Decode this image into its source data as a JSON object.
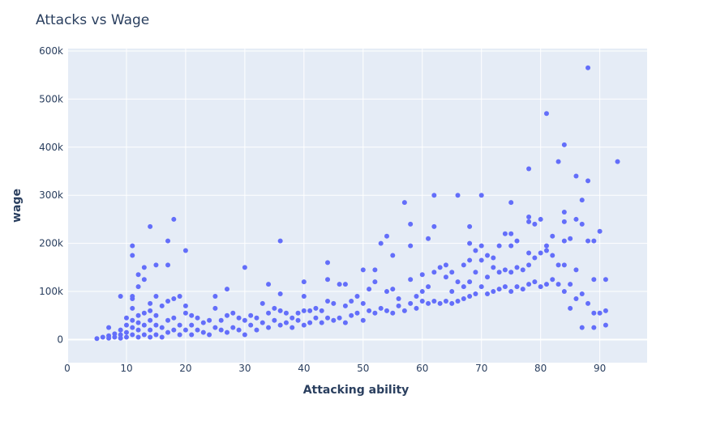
{
  "chart_data": {
    "type": "scatter",
    "title": "Attacks vs Wage",
    "xlabel": "Attacking ability",
    "ylabel": "wage",
    "xlim": [
      0,
      98
    ],
    "ylim": [
      -48000,
      605000
    ],
    "x_ticks": [
      0,
      10,
      20,
      30,
      40,
      50,
      60,
      70,
      80,
      90
    ],
    "x_tick_labels": [
      "0",
      "10",
      "20",
      "30",
      "40",
      "50",
      "60",
      "70",
      "80",
      "90"
    ],
    "y_ticks": [
      0,
      100000,
      200000,
      300000,
      400000,
      500000,
      600000
    ],
    "y_tick_labels": [
      "0",
      "100k",
      "200k",
      "300k",
      "400k",
      "500k",
      "600k"
    ],
    "grid": true,
    "legend": false,
    "colors": {
      "marker": "#636efa",
      "plot_bg": "#e5ecf6",
      "grid": "#ffffff",
      "text": "#2a3f5f"
    },
    "series": [
      {
        "points": [
          [
            5,
            2000
          ],
          [
            6,
            5000
          ],
          [
            7,
            3000
          ],
          [
            7,
            8000
          ],
          [
            7,
            25000
          ],
          [
            8,
            5000
          ],
          [
            8,
            12000
          ],
          [
            9,
            3000
          ],
          [
            9,
            10000
          ],
          [
            9,
            20000
          ],
          [
            9,
            90000
          ],
          [
            10,
            5000
          ],
          [
            10,
            15000
          ],
          [
            10,
            30000
          ],
          [
            10,
            45000
          ],
          [
            11,
            10000
          ],
          [
            11,
            25000
          ],
          [
            11,
            40000
          ],
          [
            11,
            65000
          ],
          [
            11,
            85000
          ],
          [
            11,
            90000
          ],
          [
            11,
            175000
          ],
          [
            11,
            195000
          ],
          [
            12,
            5000
          ],
          [
            12,
            20000
          ],
          [
            12,
            35000
          ],
          [
            12,
            50000
          ],
          [
            12,
            110000
          ],
          [
            12,
            135000
          ],
          [
            13,
            10000
          ],
          [
            13,
            30000
          ],
          [
            13,
            55000
          ],
          [
            13,
            125000
          ],
          [
            13,
            150000
          ],
          [
            14,
            5000
          ],
          [
            14,
            20000
          ],
          [
            14,
            40000
          ],
          [
            14,
            60000
          ],
          [
            14,
            75000
          ],
          [
            14,
            235000
          ],
          [
            15,
            10000
          ],
          [
            15,
            30000
          ],
          [
            15,
            50000
          ],
          [
            15,
            90000
          ],
          [
            15,
            155000
          ],
          [
            16,
            5000
          ],
          [
            16,
            25000
          ],
          [
            16,
            70000
          ],
          [
            17,
            15000
          ],
          [
            17,
            40000
          ],
          [
            17,
            80000
          ],
          [
            17,
            155000
          ],
          [
            17,
            205000
          ],
          [
            18,
            20000
          ],
          [
            18,
            45000
          ],
          [
            18,
            85000
          ],
          [
            18,
            250000
          ],
          [
            19,
            10000
          ],
          [
            19,
            30000
          ],
          [
            19,
            90000
          ],
          [
            20,
            20000
          ],
          [
            20,
            55000
          ],
          [
            20,
            70000
          ],
          [
            20,
            185000
          ],
          [
            21,
            10000
          ],
          [
            21,
            30000
          ],
          [
            21,
            50000
          ],
          [
            22,
            20000
          ],
          [
            22,
            45000
          ],
          [
            23,
            15000
          ],
          [
            23,
            35000
          ],
          [
            24,
            10000
          ],
          [
            24,
            40000
          ],
          [
            25,
            25000
          ],
          [
            25,
            65000
          ],
          [
            25,
            90000
          ],
          [
            26,
            20000
          ],
          [
            26,
            40000
          ],
          [
            27,
            15000
          ],
          [
            27,
            50000
          ],
          [
            27,
            105000
          ],
          [
            28,
            25000
          ],
          [
            28,
            55000
          ],
          [
            29,
            20000
          ],
          [
            29,
            45000
          ],
          [
            30,
            10000
          ],
          [
            30,
            40000
          ],
          [
            30,
            150000
          ],
          [
            31,
            30000
          ],
          [
            31,
            50000
          ],
          [
            32,
            20000
          ],
          [
            32,
            45000
          ],
          [
            33,
            35000
          ],
          [
            33,
            75000
          ],
          [
            34,
            25000
          ],
          [
            34,
            55000
          ],
          [
            34,
            115000
          ],
          [
            35,
            40000
          ],
          [
            35,
            65000
          ],
          [
            36,
            30000
          ],
          [
            36,
            60000
          ],
          [
            36,
            95000
          ],
          [
            36,
            205000
          ],
          [
            37,
            35000
          ],
          [
            37,
            55000
          ],
          [
            38,
            25000
          ],
          [
            38,
            45000
          ],
          [
            39,
            40000
          ],
          [
            39,
            55000
          ],
          [
            40,
            30000
          ],
          [
            40,
            60000
          ],
          [
            40,
            90000
          ],
          [
            40,
            120000
          ],
          [
            41,
            35000
          ],
          [
            41,
            60000
          ],
          [
            42,
            45000
          ],
          [
            42,
            65000
          ],
          [
            43,
            35000
          ],
          [
            43,
            60000
          ],
          [
            44,
            45000
          ],
          [
            44,
            80000
          ],
          [
            44,
            125000
          ],
          [
            44,
            160000
          ],
          [
            45,
            40000
          ],
          [
            45,
            75000
          ],
          [
            46,
            45000
          ],
          [
            46,
            115000
          ],
          [
            47,
            35000
          ],
          [
            47,
            70000
          ],
          [
            47,
            115000
          ],
          [
            48,
            50000
          ],
          [
            48,
            80000
          ],
          [
            49,
            55000
          ],
          [
            49,
            90000
          ],
          [
            50,
            40000
          ],
          [
            50,
            75000
          ],
          [
            50,
            145000
          ],
          [
            51,
            60000
          ],
          [
            51,
            105000
          ],
          [
            52,
            55000
          ],
          [
            52,
            120000
          ],
          [
            52,
            145000
          ],
          [
            53,
            65000
          ],
          [
            53,
            200000
          ],
          [
            54,
            60000
          ],
          [
            54,
            100000
          ],
          [
            54,
            215000
          ],
          [
            55,
            55000
          ],
          [
            55,
            105000
          ],
          [
            55,
            175000
          ],
          [
            56,
            70000
          ],
          [
            56,
            85000
          ],
          [
            57,
            60000
          ],
          [
            57,
            285000
          ],
          [
            58,
            75000
          ],
          [
            58,
            125000
          ],
          [
            58,
            195000
          ],
          [
            58,
            240000
          ],
          [
            59,
            65000
          ],
          [
            59,
            90000
          ],
          [
            60,
            80000
          ],
          [
            60,
            100000
          ],
          [
            60,
            135000
          ],
          [
            61,
            75000
          ],
          [
            61,
            110000
          ],
          [
            61,
            210000
          ],
          [
            62,
            80000
          ],
          [
            62,
            140000
          ],
          [
            62,
            235000
          ],
          [
            62,
            300000
          ],
          [
            63,
            75000
          ],
          [
            63,
            150000
          ],
          [
            64,
            80000
          ],
          [
            64,
            130000
          ],
          [
            64,
            155000
          ],
          [
            65,
            75000
          ],
          [
            65,
            100000
          ],
          [
            65,
            140000
          ],
          [
            66,
            80000
          ],
          [
            66,
            120000
          ],
          [
            66,
            300000
          ],
          [
            67,
            85000
          ],
          [
            67,
            110000
          ],
          [
            67,
            155000
          ],
          [
            68,
            90000
          ],
          [
            68,
            120000
          ],
          [
            68,
            165000
          ],
          [
            68,
            200000
          ],
          [
            68,
            235000
          ],
          [
            69,
            95000
          ],
          [
            69,
            140000
          ],
          [
            69,
            185000
          ],
          [
            70,
            110000
          ],
          [
            70,
            165000
          ],
          [
            70,
            195000
          ],
          [
            70,
            300000
          ],
          [
            71,
            95000
          ],
          [
            71,
            130000
          ],
          [
            71,
            175000
          ],
          [
            72,
            100000
          ],
          [
            72,
            150000
          ],
          [
            72,
            170000
          ],
          [
            73,
            105000
          ],
          [
            73,
            140000
          ],
          [
            73,
            195000
          ],
          [
            74,
            110000
          ],
          [
            74,
            145000
          ],
          [
            74,
            220000
          ],
          [
            75,
            100000
          ],
          [
            75,
            140000
          ],
          [
            75,
            195000
          ],
          [
            75,
            220000
          ],
          [
            75,
            285000
          ],
          [
            76,
            110000
          ],
          [
            76,
            150000
          ],
          [
            76,
            205000
          ],
          [
            77,
            105000
          ],
          [
            77,
            145000
          ],
          [
            78,
            115000
          ],
          [
            78,
            155000
          ],
          [
            78,
            180000
          ],
          [
            78,
            245000
          ],
          [
            78,
            255000
          ],
          [
            78,
            355000
          ],
          [
            79,
            120000
          ],
          [
            79,
            170000
          ],
          [
            79,
            240000
          ],
          [
            80,
            110000
          ],
          [
            80,
            180000
          ],
          [
            80,
            250000
          ],
          [
            81,
            115000
          ],
          [
            81,
            185000
          ],
          [
            81,
            195000
          ],
          [
            81,
            470000
          ],
          [
            82,
            125000
          ],
          [
            82,
            175000
          ],
          [
            82,
            215000
          ],
          [
            83,
            115000
          ],
          [
            83,
            155000
          ],
          [
            83,
            370000
          ],
          [
            84,
            100000
          ],
          [
            84,
            155000
          ],
          [
            84,
            205000
          ],
          [
            84,
            245000
          ],
          [
            84,
            265000
          ],
          [
            84,
            405000
          ],
          [
            85,
            65000
          ],
          [
            85,
            115000
          ],
          [
            85,
            210000
          ],
          [
            86,
            85000
          ],
          [
            86,
            145000
          ],
          [
            86,
            250000
          ],
          [
            86,
            340000
          ],
          [
            87,
            25000
          ],
          [
            87,
            95000
          ],
          [
            87,
            240000
          ],
          [
            87,
            290000
          ],
          [
            88,
            75000
          ],
          [
            88,
            205000
          ],
          [
            88,
            330000
          ],
          [
            88,
            565000
          ],
          [
            89,
            25000
          ],
          [
            89,
            55000
          ],
          [
            89,
            125000
          ],
          [
            89,
            205000
          ],
          [
            90,
            55000
          ],
          [
            90,
            225000
          ],
          [
            91,
            30000
          ],
          [
            91,
            60000
          ],
          [
            91,
            125000
          ],
          [
            93,
            370000
          ]
        ]
      }
    ]
  }
}
